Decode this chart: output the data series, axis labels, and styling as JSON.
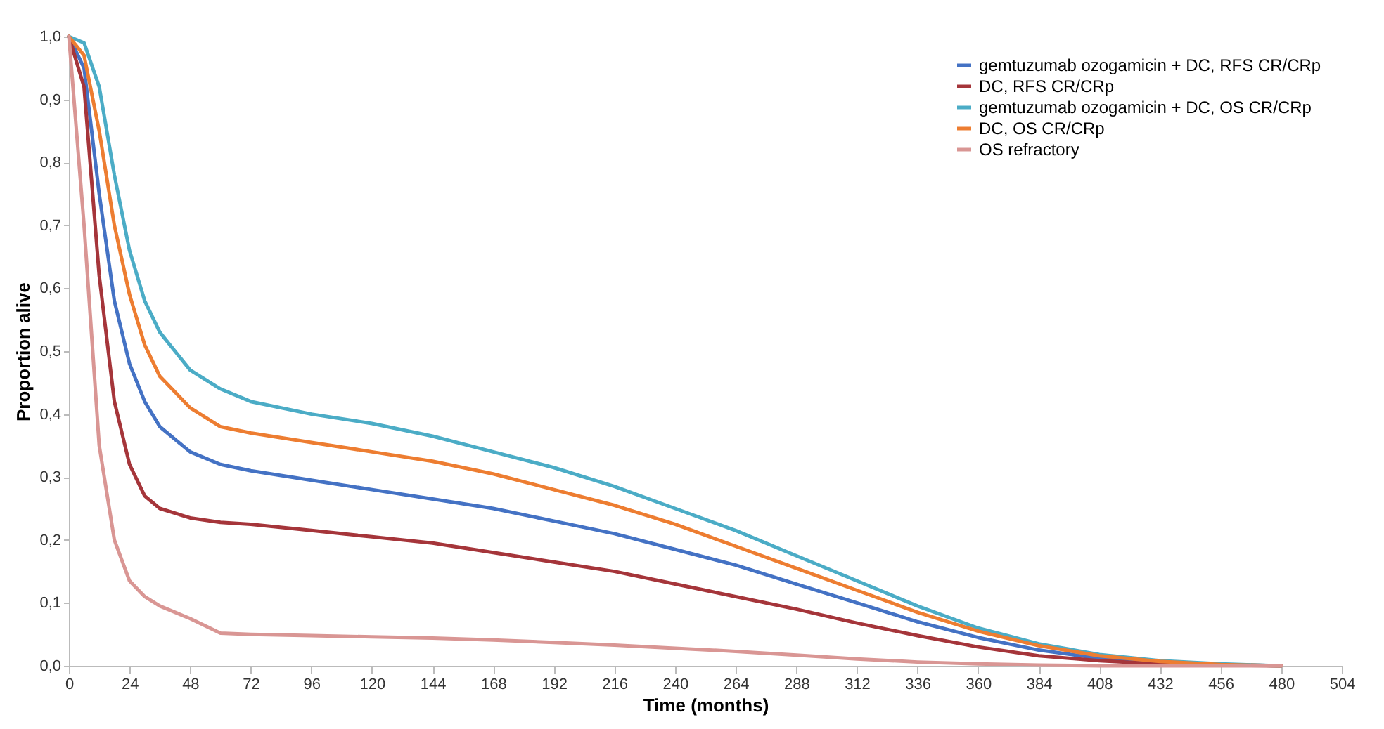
{
  "chart_data": {
    "type": "line",
    "xlabel": "Time (months)",
    "ylabel": "Proportion alive",
    "x": [
      0,
      6,
      12,
      18,
      24,
      30,
      36,
      48,
      60,
      72,
      96,
      120,
      144,
      168,
      192,
      216,
      240,
      264,
      288,
      312,
      336,
      360,
      384,
      408,
      432,
      456,
      480
    ],
    "xlim": [
      0,
      504
    ],
    "xticks": [
      0,
      24,
      48,
      72,
      96,
      120,
      144,
      168,
      192,
      216,
      240,
      264,
      288,
      312,
      336,
      360,
      384,
      408,
      432,
      456,
      480,
      504
    ],
    "ylim": [
      0,
      1
    ],
    "yticks": [
      {
        "value": 0,
        "label": "0,0"
      },
      {
        "value": 0.1,
        "label": "0,1"
      },
      {
        "value": 0.2,
        "label": "0,2"
      },
      {
        "value": 0.3,
        "label": "0,3"
      },
      {
        "value": 0.4,
        "label": "0,4"
      },
      {
        "value": 0.5,
        "label": "0,5"
      },
      {
        "value": 0.6,
        "label": "0,6"
      },
      {
        "value": 0.7,
        "label": "0,7"
      },
      {
        "value": 0.8,
        "label": "0,8"
      },
      {
        "value": 0.9,
        "label": "0,9"
      },
      {
        "value": 1,
        "label": "1,0"
      }
    ],
    "grid": false,
    "legend": "top right",
    "marker": "none",
    "line_style": "solid",
    "series": [
      {
        "name": "gemtuzumab ozogamicin + DC, RFS CR/CRp",
        "color": "#4472c4",
        "values": [
          1,
          0.95,
          0.75,
          0.58,
          0.48,
          0.42,
          0.38,
          0.34,
          0.32,
          0.31,
          0.295,
          0.28,
          0.265,
          0.25,
          0.23,
          0.21,
          0.185,
          0.16,
          0.13,
          0.1,
          0.07,
          0.045,
          0.025,
          0.012,
          0.005,
          0.002,
          0
        ]
      },
      {
        "name": "DC, RFS CR/CRp",
        "color": "#a5353a",
        "values": [
          1,
          0.92,
          0.62,
          0.42,
          0.32,
          0.27,
          0.25,
          0.235,
          0.228,
          0.225,
          0.215,
          0.205,
          0.195,
          0.18,
          0.165,
          0.15,
          0.13,
          0.11,
          0.09,
          0.068,
          0.048,
          0.03,
          0.016,
          0.008,
          0.003,
          0.001,
          0
        ]
      },
      {
        "name": "gemtuzumab ozogamicin + DC, OS CR/CRp",
        "color": "#4bacc6",
        "values": [
          1,
          0.99,
          0.92,
          0.78,
          0.66,
          0.58,
          0.53,
          0.47,
          0.44,
          0.42,
          0.4,
          0.385,
          0.365,
          0.34,
          0.315,
          0.285,
          0.25,
          0.215,
          0.175,
          0.135,
          0.095,
          0.06,
          0.035,
          0.018,
          0.008,
          0.003,
          0
        ]
      },
      {
        "name": "DC, OS CR/CRp",
        "color": "#ed7d31",
        "values": [
          1,
          0.97,
          0.85,
          0.7,
          0.59,
          0.51,
          0.46,
          0.41,
          0.38,
          0.37,
          0.355,
          0.34,
          0.325,
          0.305,
          0.28,
          0.255,
          0.225,
          0.19,
          0.155,
          0.12,
          0.085,
          0.055,
          0.032,
          0.016,
          0.007,
          0.002,
          0
        ]
      },
      {
        "name": "OS refractory",
        "color": "#d99694",
        "values": [
          1,
          0.7,
          0.35,
          0.2,
          0.135,
          0.11,
          0.095,
          0.075,
          0.052,
          0.05,
          0.048,
          0.046,
          0.044,
          0.041,
          0.037,
          0.033,
          0.028,
          0.023,
          0.017,
          0.011,
          0.006,
          0.003,
          0.001,
          0,
          0,
          0,
          0
        ]
      }
    ]
  }
}
